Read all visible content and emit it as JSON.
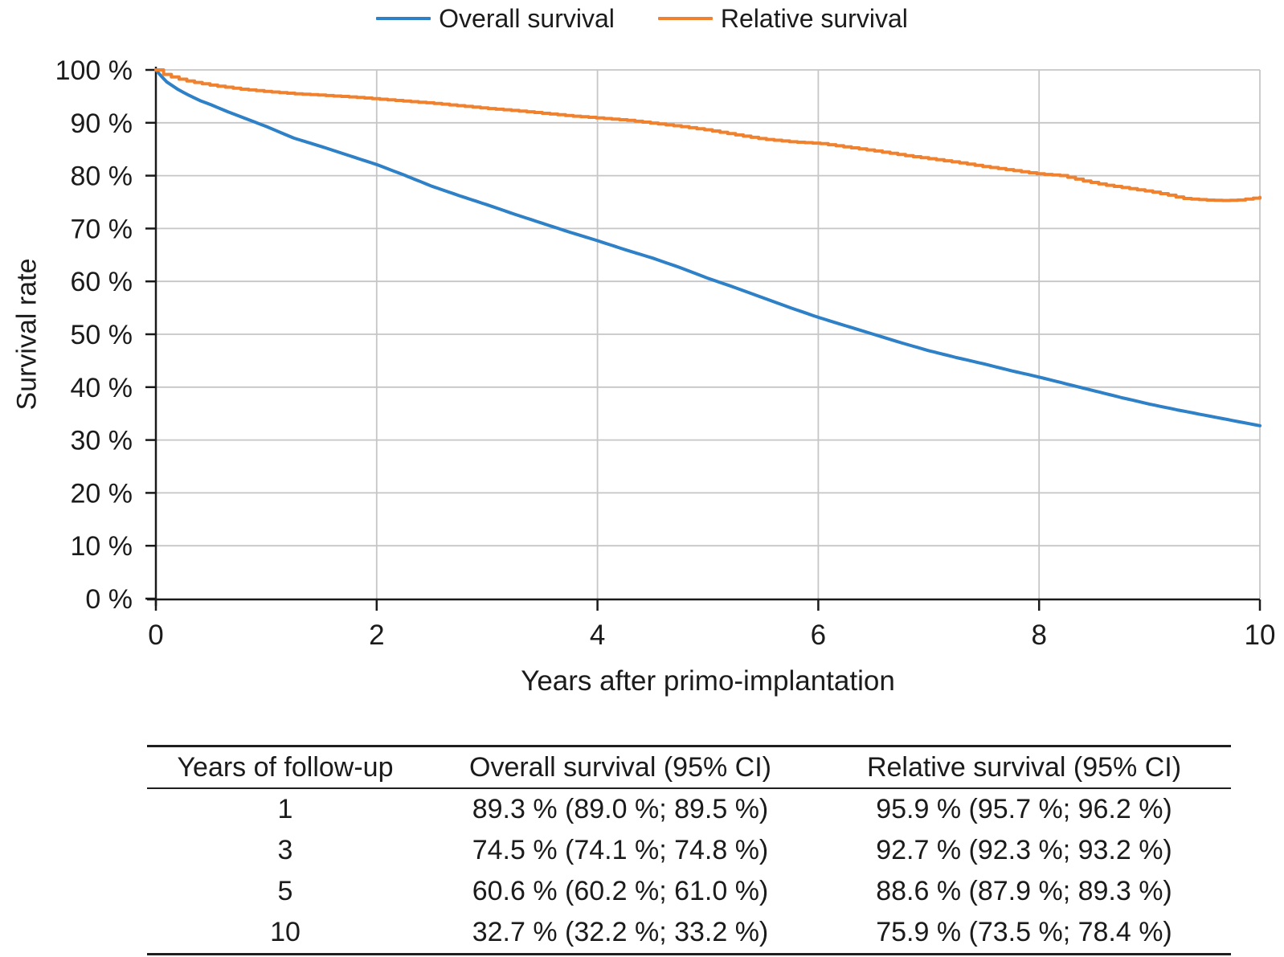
{
  "colors": {
    "overall": "#2E80C7",
    "relative": "#F0822F",
    "grid": "#C6C6C6",
    "axis": "#1a1a1a",
    "text": "#1b1b1b"
  },
  "legend": {
    "items": [
      {
        "id": "overall",
        "label": "Overall survival"
      },
      {
        "id": "relative",
        "label": "Relative survival"
      }
    ]
  },
  "chart_data": {
    "type": "line",
    "title": "",
    "xlabel": "Years after primo-implantation",
    "ylabel": "Survival rate",
    "xlim": [
      0,
      10
    ],
    "ylim": [
      0,
      100
    ],
    "grid": true,
    "legend_position": "top",
    "x_ticks": [
      0,
      2,
      4,
      6,
      8,
      10
    ],
    "x_tick_labels": [
      "0",
      "2",
      "4",
      "6",
      "8",
      "10"
    ],
    "y_ticks": [
      0,
      10,
      20,
      30,
      40,
      50,
      60,
      70,
      80,
      90,
      100
    ],
    "y_tick_labels": [
      "0 %",
      "10 %",
      "20 %",
      "30 %",
      "40 %",
      "50 %",
      "60 %",
      "70 %",
      "80 %",
      "90 %",
      "100 %"
    ],
    "series": [
      {
        "name": "Overall survival",
        "color_key": "overall",
        "render": "line",
        "width": 4,
        "points": [
          [
            0,
            100
          ],
          [
            0.04,
            99.0
          ],
          [
            0.1,
            97.7
          ],
          [
            0.2,
            96.3
          ],
          [
            0.3,
            95.2
          ],
          [
            0.4,
            94.2
          ],
          [
            0.5,
            93.4
          ],
          [
            0.65,
            92.1
          ],
          [
            0.8,
            90.9
          ],
          [
            1,
            89.3
          ],
          [
            1.25,
            87.1
          ],
          [
            1.5,
            85.5
          ],
          [
            1.75,
            83.8
          ],
          [
            2,
            82.1
          ],
          [
            2.25,
            80.1
          ],
          [
            2.5,
            78.0
          ],
          [
            2.75,
            76.2
          ],
          [
            3,
            74.5
          ],
          [
            3.25,
            72.7
          ],
          [
            3.5,
            71.0
          ],
          [
            3.75,
            69.3
          ],
          [
            4,
            67.7
          ],
          [
            4.25,
            66.0
          ],
          [
            4.5,
            64.4
          ],
          [
            4.75,
            62.6
          ],
          [
            5,
            60.6
          ],
          [
            5.25,
            58.8
          ],
          [
            5.5,
            56.9
          ],
          [
            5.75,
            55.0
          ],
          [
            6,
            53.2
          ],
          [
            6.25,
            51.6
          ],
          [
            6.5,
            50.0
          ],
          [
            6.75,
            48.4
          ],
          [
            7,
            46.9
          ],
          [
            7.25,
            45.6
          ],
          [
            7.5,
            44.4
          ],
          [
            7.75,
            43.1
          ],
          [
            8,
            41.9
          ],
          [
            8.25,
            40.6
          ],
          [
            8.5,
            39.3
          ],
          [
            8.75,
            38.0
          ],
          [
            9,
            36.8
          ],
          [
            9.25,
            35.7
          ],
          [
            9.5,
            34.7
          ],
          [
            9.75,
            33.7
          ],
          [
            10,
            32.7
          ]
        ]
      },
      {
        "name": "Relative survival",
        "color_key": "relative",
        "render": "step",
        "width": 4,
        "points": [
          [
            0,
            100
          ],
          [
            0.04,
            99.4
          ],
          [
            0.1,
            98.9
          ],
          [
            0.2,
            98.3
          ],
          [
            0.3,
            97.8
          ],
          [
            0.5,
            97.1
          ],
          [
            0.75,
            96.4
          ],
          [
            1,
            95.9
          ],
          [
            1.25,
            95.5
          ],
          [
            1.5,
            95.2
          ],
          [
            1.75,
            94.9
          ],
          [
            2,
            94.5
          ],
          [
            2.25,
            94.1
          ],
          [
            2.5,
            93.7
          ],
          [
            2.75,
            93.2
          ],
          [
            3,
            92.7
          ],
          [
            3.25,
            92.3
          ],
          [
            3.5,
            91.8
          ],
          [
            3.75,
            91.3
          ],
          [
            4,
            90.9
          ],
          [
            4.25,
            90.5
          ],
          [
            4.5,
            89.9
          ],
          [
            4.75,
            89.3
          ],
          [
            5,
            88.6
          ],
          [
            5.25,
            87.7
          ],
          [
            5.5,
            86.9
          ],
          [
            5.75,
            86.4
          ],
          [
            6,
            86.1
          ],
          [
            6.25,
            85.4
          ],
          [
            6.5,
            84.7
          ],
          [
            6.75,
            83.9
          ],
          [
            7,
            83.2
          ],
          [
            7.25,
            82.5
          ],
          [
            7.5,
            81.7
          ],
          [
            7.75,
            81.0
          ],
          [
            8,
            80.3
          ],
          [
            8.2,
            80.0
          ],
          [
            8.4,
            79.0
          ],
          [
            8.6,
            78.2
          ],
          [
            8.8,
            77.6
          ],
          [
            9,
            77.0
          ],
          [
            9.15,
            76.4
          ],
          [
            9.3,
            75.7
          ],
          [
            9.5,
            75.4
          ],
          [
            9.65,
            75.3
          ],
          [
            9.8,
            75.4
          ],
          [
            10,
            75.9
          ]
        ]
      }
    ],
    "summary_table": {
      "columns": [
        "Years of follow-up",
        "Overall survival (95% CI)",
        "Relative survival (95% CI)"
      ],
      "rows": [
        {
          "cells": [
            "1",
            "89.3 % (89.0 %; 89.5 %)",
            "95.9 % (95.7 %; 96.2 %)"
          ]
        },
        {
          "cells": [
            "3",
            "74.5 % (74.1 %; 74.8 %)",
            "92.7 % (92.3 %; 93.2 %)"
          ]
        },
        {
          "cells": [
            "5",
            "60.6 % (60.2 %; 61.0 %)",
            "88.6 % (87.9 %; 89.3 %)"
          ]
        },
        {
          "cells": [
            "10",
            "32.7 % (32.2 %; 33.2 %)",
            "75.9 % (73.5 %; 78.4 %)"
          ]
        }
      ]
    }
  }
}
